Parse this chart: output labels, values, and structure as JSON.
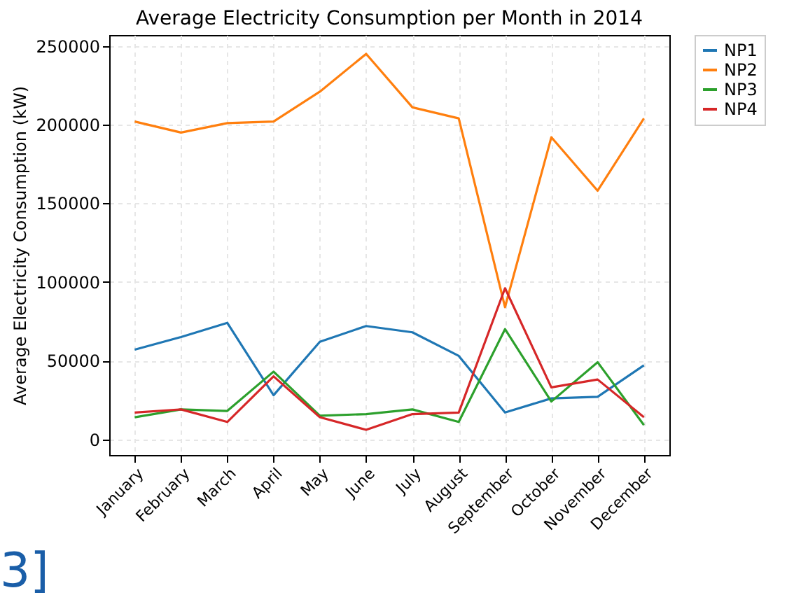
{
  "chart_data": {
    "type": "line",
    "title": "Average Electricity Consumption per Month in 2014",
    "ylabel": "Average Electricity Consumption (kW)",
    "categories": [
      "January",
      "February",
      "March",
      "April",
      "May",
      "June",
      "July",
      "August",
      "September",
      "October",
      "November",
      "December"
    ],
    "series": [
      {
        "name": "NP1",
        "color": "#1f77b4",
        "values": [
          57000,
          65000,
          74000,
          28000,
          62000,
          72000,
          68000,
          53000,
          17000,
          26000,
          27000,
          47000
        ]
      },
      {
        "name": "NP2",
        "color": "#ff7f0e",
        "values": [
          202000,
          195000,
          201000,
          202000,
          221000,
          245000,
          211000,
          204000,
          84000,
          192000,
          158000,
          204000
        ]
      },
      {
        "name": "NP3",
        "color": "#2ca02c",
        "values": [
          14000,
          19000,
          18000,
          43000,
          15000,
          16000,
          19000,
          11000,
          70000,
          24000,
          49000,
          9000
        ]
      },
      {
        "name": "NP4",
        "color": "#d62728",
        "values": [
          17000,
          19000,
          11000,
          40000,
          14000,
          6000,
          16000,
          17000,
          96000,
          33000,
          38000,
          14000
        ]
      }
    ],
    "ylim": [
      -10000,
      257000
    ],
    "yticks": [
      0,
      50000,
      100000,
      150000,
      200000,
      250000
    ],
    "grid": true,
    "legend": "right",
    "line_style": "solid",
    "marker": "none",
    "annotations": [
      "3]"
    ]
  }
}
